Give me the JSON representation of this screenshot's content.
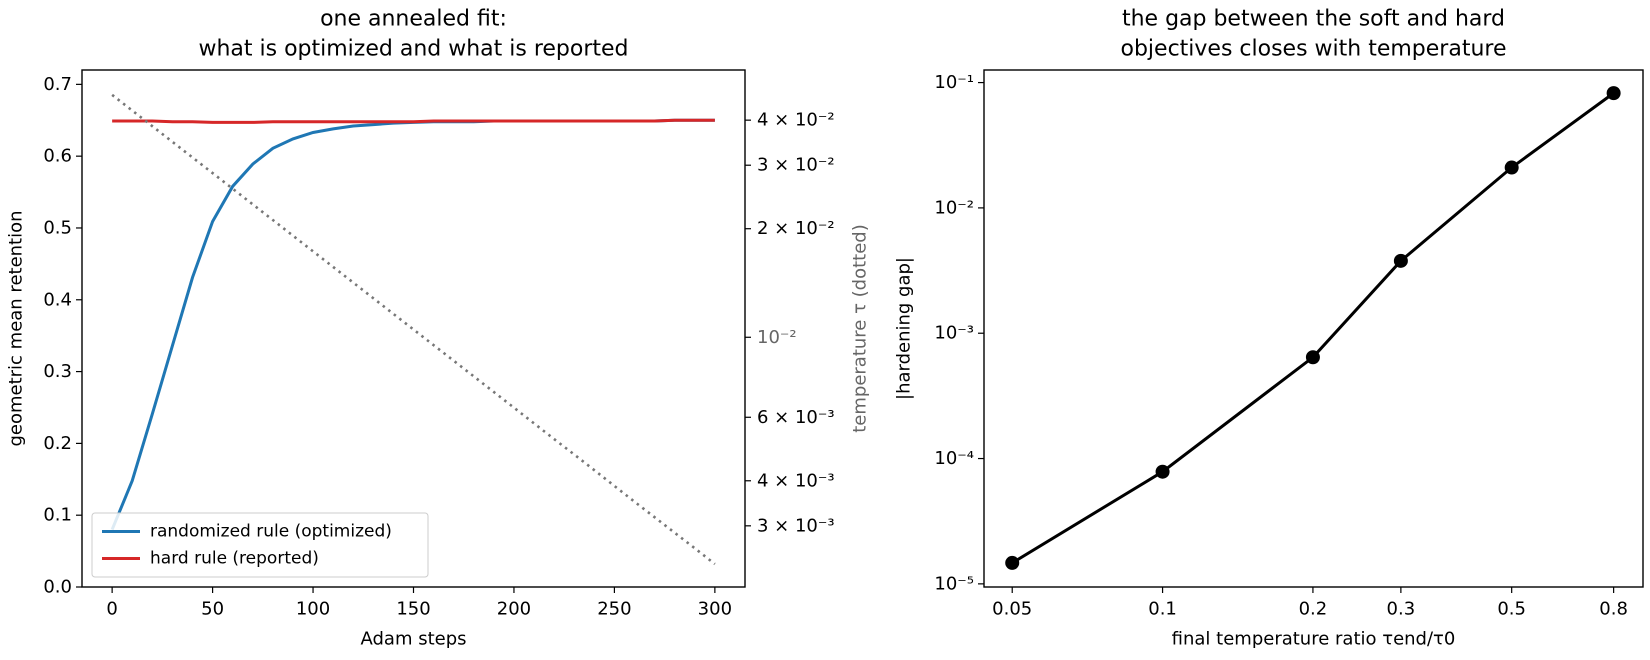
{
  "chart_data": [
    {
      "type": "line",
      "title": [
        "one annealed fit:",
        "what is optimized and what is reported"
      ],
      "xlabel": "Adam steps",
      "ylabel": "geometric mean retention",
      "y2label": "temperature τ (dotted)",
      "x": [
        0,
        10,
        20,
        30,
        40,
        50,
        60,
        70,
        80,
        90,
        100,
        110,
        120,
        130,
        140,
        150,
        160,
        170,
        180,
        190,
        200,
        210,
        220,
        230,
        240,
        250,
        260,
        270,
        280,
        290,
        300
      ],
      "xlim": [
        -15,
        315
      ],
      "xticks": [
        0,
        50,
        100,
        150,
        200,
        250,
        300
      ],
      "ylim": [
        0,
        0.72
      ],
      "yticks": [
        {
          "value": 0,
          "label": "0.0"
        },
        0.1,
        0.2,
        0.3,
        0.4,
        0.5,
        0.6,
        0.7
      ],
      "y2scale": "log",
      "y2lim": [
        0.00203,
        0.0551
      ],
      "y2ticks": [
        {
          "value": 0.003,
          "label": "3 × 10⁻³"
        },
        {
          "value": 0.004,
          "label": "4 × 10⁻³"
        },
        {
          "value": 0.006,
          "label": "6 × 10⁻³"
        },
        {
          "value": 0.01,
          "label": "10⁻²"
        },
        {
          "value": 0.02,
          "label": "2 × 10⁻²"
        },
        {
          "value": 0.03,
          "label": "3 × 10⁻²"
        },
        {
          "value": 0.04,
          "label": "4 × 10⁻²"
        }
      ],
      "legend": "lower left",
      "series": [
        {
          "name": "randomized rule (optimized)",
          "color": "#1f77b4",
          "values": [
            0.08,
            0.148,
            0.241,
            0.336,
            0.431,
            0.509,
            0.558,
            0.589,
            0.611,
            0.624,
            0.633,
            0.638,
            0.642,
            0.644,
            0.646,
            0.647,
            0.648,
            0.648,
            0.648,
            0.649,
            0.649,
            0.649,
            0.649,
            0.649,
            0.649,
            0.649,
            0.649,
            0.649,
            0.65,
            0.65,
            0.65
          ]
        },
        {
          "name": "hard rule (reported)",
          "color": "#d62728",
          "values": [
            0.649,
            0.649,
            0.649,
            0.648,
            0.648,
            0.647,
            0.647,
            0.647,
            0.648,
            0.648,
            0.648,
            0.648,
            0.648,
            0.648,
            0.648,
            0.648,
            0.649,
            0.649,
            0.649,
            0.649,
            0.649,
            0.649,
            0.649,
            0.649,
            0.649,
            0.649,
            0.649,
            0.649,
            0.65,
            0.65,
            0.65
          ]
        },
        {
          "color": "#777777",
          "style": "dotted",
          "axis": "y2",
          "values": [
            0.047,
            0.04253,
            0.03849,
            0.03483,
            0.03152,
            0.02853,
            0.02582,
            0.02336,
            0.02114,
            0.01913,
            0.01731,
            0.01567,
            0.01418,
            0.01283,
            0.01161,
            0.01051,
            0.00951,
            0.00861,
            0.00779,
            0.00705,
            0.00638,
            0.00577,
            0.00522,
            0.00473,
            0.00428,
            0.00387,
            0.0035,
            0.00317,
            0.00287,
            0.0026,
            0.00235
          ]
        }
      ]
    },
    {
      "type": "line",
      "title": [
        "the gap between the soft and hard",
        "objectives closes with temperature"
      ],
      "xlabel": "final temperature ratio τend/τ0",
      "ylabel": "|hardening gap|",
      "xscale": "log",
      "yscale": "log",
      "x": [
        0.05,
        0.1,
        0.2,
        0.3,
        0.5,
        0.8
      ],
      "xlim": [
        0.0439,
        0.916
      ],
      "xticks": [
        0.05,
        0.1,
        0.2,
        0.3,
        0.5,
        0.8
      ],
      "ylim": [
        9.44e-06,
        0.126
      ],
      "yticks": [
        {
          "value": 1e-05,
          "label": "10⁻⁵"
        },
        {
          "value": 0.0001,
          "label": "10⁻⁴"
        },
        {
          "value": 0.001,
          "label": "10⁻³"
        },
        {
          "value": 0.01,
          "label": "10⁻²"
        },
        {
          "value": 0.1,
          "label": "10⁻¹"
        }
      ],
      "series": [
        {
          "color": "#000000",
          "marker": "o",
          "values": [
            1.47e-05,
            7.85e-05,
            0.000643,
            0.00378,
            0.021,
            0.0824
          ]
        }
      ]
    }
  ]
}
